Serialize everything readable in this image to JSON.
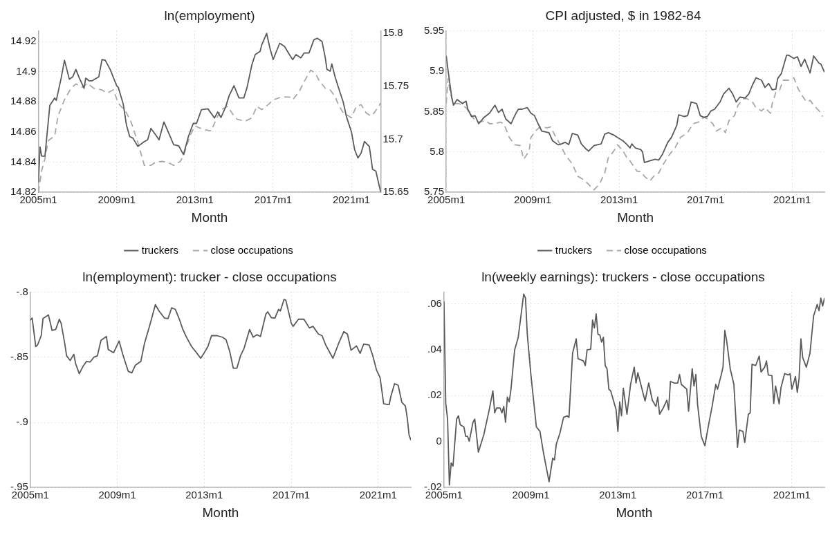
{
  "chart_data": [
    {
      "type": "line",
      "title": "ln(employment)",
      "xlabel": "Month",
      "xlim": [
        "2005-01",
        "2022-07"
      ],
      "xticks": [
        {
          "value": "2005-01",
          "label": "2005m1"
        },
        {
          "value": "2009-01",
          "label": "2009m1"
        },
        {
          "value": "2013-01",
          "label": "2013m1"
        },
        {
          "value": "2017-01",
          "label": "2017m1"
        },
        {
          "value": "2021-01",
          "label": "2021m1"
        }
      ],
      "ylim": [
        14.82,
        14.927
      ],
      "yticks": [
        14.82,
        14.84,
        14.86,
        14.88,
        14.9,
        14.92
      ],
      "y2lim": [
        15.65,
        15.802
      ],
      "y2ticks": [
        15.65,
        15.7,
        15.75,
        15.8
      ],
      "grid": true,
      "legend": "bottom",
      "series": [
        {
          "name": "truckers",
          "color": "#5a5a5a",
          "line_style": "solid",
          "x": [
            "2005-01",
            "2005-02",
            "2005-03",
            "2005-05",
            "2005-08",
            "2005-11",
            "2005-12",
            "2006-03",
            "2006-05",
            "2006-08",
            "2006-10",
            "2006-12",
            "2007-02",
            "2007-05",
            "2007-06",
            "2007-08",
            "2007-10",
            "2008-02",
            "2008-04",
            "2008-06",
            "2008-09",
            "2009-01",
            "2009-02",
            "2009-05",
            "2009-07",
            "2009-09",
            "2009-11",
            "2010-02",
            "2010-06",
            "2010-08",
            "2010-10",
            "2011-01",
            "2011-03",
            "2011-06",
            "2011-09",
            "2011-12",
            "2012-03",
            "2012-06",
            "2012-09",
            "2012-12",
            "2013-02",
            "2013-05",
            "2013-09",
            "2014-01",
            "2014-03",
            "2014-05",
            "2014-08",
            "2014-10",
            "2015-01",
            "2015-04",
            "2015-07",
            "2015-09",
            "2015-12",
            "2016-02",
            "2016-05",
            "2016-06",
            "2016-09",
            "2016-11",
            "2017-01",
            "2017-05",
            "2017-08",
            "2017-11",
            "2018-01",
            "2018-03",
            "2018-06",
            "2018-08",
            "2018-11",
            "2019-02",
            "2019-04",
            "2019-07",
            "2019-09",
            "2019-10",
            "2019-12",
            "2020-01",
            "2020-03",
            "2020-06",
            "2020-08",
            "2020-10",
            "2021-01",
            "2021-03",
            "2021-05",
            "2021-07",
            "2021-09",
            "2021-12",
            "2022-02",
            "2022-04",
            "2022-07"
          ],
          "values": [
            14.8265,
            14.85,
            14.844,
            14.844,
            14.8776,
            14.8826,
            14.881,
            14.896,
            14.9076,
            14.895,
            14.8965,
            14.9015,
            14.896,
            14.889,
            14.8957,
            14.894,
            14.894,
            14.8965,
            14.908,
            14.9076,
            14.9015,
            14.8907,
            14.8896,
            14.8787,
            14.8646,
            14.857,
            14.8559,
            14.8504,
            14.8537,
            14.8548,
            14.8624,
            14.858,
            14.8548,
            14.8667,
            14.8591,
            14.8515,
            14.8509,
            14.845,
            14.857,
            14.8657,
            14.8657,
            14.8748,
            14.8754,
            14.8693,
            14.8733,
            14.8696,
            14.877,
            14.8841,
            14.8907,
            14.8826,
            14.8826,
            14.8896,
            14.9048,
            14.9113,
            14.9135,
            14.9178,
            14.9254,
            14.9157,
            14.908,
            14.9189,
            14.9167,
            14.9113,
            14.908,
            14.9113,
            14.9091,
            14.9124,
            14.9124,
            14.9211,
            14.9222,
            14.92,
            14.9091,
            14.9015,
            14.9004,
            14.9052,
            14.8965,
            14.8863,
            14.8798,
            14.87,
            14.8602,
            14.8483,
            14.8428,
            14.8461,
            14.8537,
            14.8504,
            14.8352,
            14.8341,
            14.82
          ]
        },
        {
          "name": "close occupations",
          "color": "#a8a8a8",
          "line_style": "dashed",
          "axis": "y2",
          "x": [
            "2005-01",
            "2005-03",
            "2005-05",
            "2005-07",
            "2005-11",
            "2006-01",
            "2006-05",
            "2006-09",
            "2006-12",
            "2007-04",
            "2007-07",
            "2007-11",
            "2008-04",
            "2008-07",
            "2008-11",
            "2009-02",
            "2009-07",
            "2009-10",
            "2010-02",
            "2010-06",
            "2010-10",
            "2011-01",
            "2011-05",
            "2011-08",
            "2011-12",
            "2012-04",
            "2012-06",
            "2012-10",
            "2013-01",
            "2013-06",
            "2013-11",
            "2014-02",
            "2014-05",
            "2014-09",
            "2015-01",
            "2015-03",
            "2015-08",
            "2015-12",
            "2016-03",
            "2016-06",
            "2016-10",
            "2017-01",
            "2017-06",
            "2017-11",
            "2018-01",
            "2018-05",
            "2018-08",
            "2018-12",
            "2019-03",
            "2019-05",
            "2019-09",
            "2019-12",
            "2020-03",
            "2020-05",
            "2020-08",
            "2020-10",
            "2021-01",
            "2021-04",
            "2021-07",
            "2021-10",
            "2022-01",
            "2022-03",
            "2022-07"
          ],
          "values": [
            15.65,
            15.6707,
            15.6816,
            15.6986,
            15.7032,
            15.7218,
            15.7372,
            15.748,
            15.7521,
            15.749,
            15.7527,
            15.748,
            15.7465,
            15.7434,
            15.7465,
            15.7341,
            15.7249,
            15.7156,
            15.697,
            15.6754,
            15.6754,
            15.6785,
            15.6791,
            15.6785,
            15.6754,
            15.6791,
            15.6846,
            15.7032,
            15.7125,
            15.7094,
            15.7078,
            15.7187,
            15.7279,
            15.731,
            15.7218,
            15.7187,
            15.7171,
            15.7202,
            15.731,
            15.7279,
            15.7326,
            15.7372,
            15.7397,
            15.7397,
            15.7372,
            15.745,
            15.7542,
            15.7651,
            15.762,
            15.7558,
            15.748,
            15.7465,
            15.7403,
            15.7326,
            15.7249,
            15.7233,
            15.7202,
            15.731,
            15.7326,
            15.7249,
            15.7218,
            15.7249,
            15.7341
          ]
        }
      ]
    },
    {
      "type": "line",
      "title": "CPI adjusted, $ in 1982-84",
      "xlabel": "Month",
      "xlim": [
        "2005-01",
        "2022-07"
      ],
      "xticks": [
        {
          "value": "2005-01",
          "label": "2005m1"
        },
        {
          "value": "2009-01",
          "label": "2009m1"
        },
        {
          "value": "2013-01",
          "label": "2013m1"
        },
        {
          "value": "2017-01",
          "label": "2017m1"
        },
        {
          "value": "2021-01",
          "label": "2021m1"
        }
      ],
      "ylim": [
        5.75,
        5.95
      ],
      "yticks": [
        5.75,
        5.8,
        5.85,
        5.9,
        5.95
      ],
      "grid": true,
      "legend": "bottom",
      "series": [
        {
          "name": "truckers",
          "color": "#5a5a5a",
          "line_style": "solid",
          "x": [
            "2005-01",
            "2005-02",
            "2005-04",
            "2005-05",
            "2005-07",
            "2005-10",
            "2005-12",
            "2006-01",
            "2006-03",
            "2006-05",
            "2006-07",
            "2006-10",
            "2007-01",
            "2007-04",
            "2007-06",
            "2007-08",
            "2007-10",
            "2008-01",
            "2008-03",
            "2008-05",
            "2008-07",
            "2008-10",
            "2008-12",
            "2009-02",
            "2009-04",
            "2009-06",
            "2009-10",
            "2009-12",
            "2010-03",
            "2010-05",
            "2010-07",
            "2010-09",
            "2010-11",
            "2011-02",
            "2011-04",
            "2011-06",
            "2011-08",
            "2011-11",
            "2012-01",
            "2012-03",
            "2012-05",
            "2012-07",
            "2012-10",
            "2012-12",
            "2013-03",
            "2013-05",
            "2013-07",
            "2013-08",
            "2013-10",
            "2014-01",
            "2014-02",
            "2014-03",
            "2014-06",
            "2014-09",
            "2014-11",
            "2015-01",
            "2015-04",
            "2015-06",
            "2015-09",
            "2015-10",
            "2016-01",
            "2016-03",
            "2016-05",
            "2016-08",
            "2016-10",
            "2016-12",
            "2017-02",
            "2017-04",
            "2017-06",
            "2017-09",
            "2017-11",
            "2018-02",
            "2018-04",
            "2018-06",
            "2018-08",
            "2018-11",
            "2019-01",
            "2019-03",
            "2019-05",
            "2019-08",
            "2019-10",
            "2019-12",
            "2020-02",
            "2020-04",
            "2020-05",
            "2020-07",
            "2020-10",
            "2020-11",
            "2021-02",
            "2021-04",
            "2021-06",
            "2021-08",
            "2021-11",
            "2022-01",
            "2022-04",
            "2022-05",
            "2022-07"
          ],
          "values": [
            5.919,
            5.901,
            5.868,
            5.858,
            5.865,
            5.86,
            5.863,
            5.853,
            5.844,
            5.845,
            5.835,
            5.843,
            5.848,
            5.858,
            5.849,
            5.853,
            5.841,
            5.835,
            5.845,
            5.853,
            5.853,
            5.855,
            5.848,
            5.845,
            5.835,
            5.826,
            5.824,
            5.814,
            5.809,
            5.81,
            5.812,
            5.809,
            5.823,
            5.821,
            5.81,
            5.805,
            5.801,
            5.808,
            5.809,
            5.81,
            5.822,
            5.824,
            5.821,
            5.818,
            5.814,
            5.81,
            5.805,
            5.81,
            5.805,
            5.803,
            5.8,
            5.787,
            5.789,
            5.791,
            5.79,
            5.797,
            5.812,
            5.818,
            5.833,
            5.846,
            5.844,
            5.845,
            5.862,
            5.86,
            5.845,
            5.843,
            5.844,
            5.851,
            5.853,
            5.862,
            5.872,
            5.879,
            5.872,
            5.862,
            5.868,
            5.867,
            5.872,
            5.883,
            5.892,
            5.889,
            5.88,
            5.885,
            5.877,
            5.878,
            5.891,
            5.897,
            5.92,
            5.92,
            5.916,
            5.918,
            5.906,
            5.915,
            5.898,
            5.919,
            5.91,
            5.909,
            5.899
          ]
        },
        {
          "name": "close occupations",
          "color": "#a8a8a8",
          "line_style": "dashed",
          "x": [
            "2005-01",
            "2005-02",
            "2005-03",
            "2005-05",
            "2005-08",
            "2005-12",
            "2006-03",
            "2006-05",
            "2006-07",
            "2006-11",
            "2007-01",
            "2007-04",
            "2007-07",
            "2007-09",
            "2007-12",
            "2008-03",
            "2008-06",
            "2008-08",
            "2008-11",
            "2008-12",
            "2009-03",
            "2009-05",
            "2009-09",
            "2009-11",
            "2010-01",
            "2010-04",
            "2010-07",
            "2010-11",
            "2011-02",
            "2011-05",
            "2011-08",
            "2011-11",
            "2012-02",
            "2012-05",
            "2012-07",
            "2012-10",
            "2012-12",
            "2013-03",
            "2013-05",
            "2013-07",
            "2013-11",
            "2014-01",
            "2014-03",
            "2014-06",
            "2014-09",
            "2014-11",
            "2015-01",
            "2015-05",
            "2015-08",
            "2015-11",
            "2016-03",
            "2016-06",
            "2016-09",
            "2016-12",
            "2017-02",
            "2017-05",
            "2017-07",
            "2017-10",
            "2017-12",
            "2018-02",
            "2018-05",
            "2018-07",
            "2018-10",
            "2018-12",
            "2019-03",
            "2019-05",
            "2019-08",
            "2019-10",
            "2020-01",
            "2020-02",
            "2020-04",
            "2020-06",
            "2020-08",
            "2020-11",
            "2021-02",
            "2021-04",
            "2021-06",
            "2021-09",
            "2021-11",
            "2022-01",
            "2022-04",
            "2022-06"
          ],
          "values": [
            5.86,
            5.891,
            5.876,
            5.86,
            5.86,
            5.855,
            5.845,
            5.839,
            5.837,
            5.839,
            5.835,
            5.835,
            5.837,
            5.835,
            5.818,
            5.809,
            5.808,
            5.791,
            5.801,
            5.818,
            5.827,
            5.831,
            5.83,
            5.831,
            5.822,
            5.81,
            5.797,
            5.785,
            5.77,
            5.766,
            5.76,
            5.753,
            5.76,
            5.774,
            5.793,
            5.801,
            5.809,
            5.802,
            5.794,
            5.789,
            5.776,
            5.776,
            5.77,
            5.764,
            5.772,
            5.774,
            5.783,
            5.797,
            5.805,
            5.818,
            5.824,
            5.835,
            5.837,
            5.843,
            5.841,
            5.835,
            5.826,
            5.83,
            5.824,
            5.839,
            5.845,
            5.858,
            5.866,
            5.866,
            5.862,
            5.855,
            5.851,
            5.855,
            5.848,
            5.86,
            5.874,
            5.876,
            5.889,
            5.889,
            5.892,
            5.88,
            5.872,
            5.862,
            5.864,
            5.858,
            5.851,
            5.844
          ]
        }
      ]
    },
    {
      "type": "line",
      "title": "ln(employment): trucker - close occupations",
      "xlabel": "Month",
      "xlim": [
        "2005-01",
        "2022-07"
      ],
      "xticks": [
        {
          "value": "2005-01",
          "label": "2005m1"
        },
        {
          "value": "2009-01",
          "label": "2009m1"
        },
        {
          "value": "2013-01",
          "label": "2013m1"
        },
        {
          "value": "2017-01",
          "label": "2017m1"
        },
        {
          "value": "2021-01",
          "label": "2021m1"
        }
      ],
      "ylim": [
        -0.95,
        -0.8
      ],
      "yticks": [
        {
          "value": -0.95,
          "label": "-.95"
        },
        {
          "value": -0.9,
          "label": "-.9"
        },
        {
          "value": -0.85,
          "label": "-.85"
        },
        {
          "value": -0.8,
          "label": "-.8"
        }
      ],
      "grid": true,
      "series": [
        {
          "color": "#5a5a5a",
          "line_style": "solid",
          "x": [
            "2005-01",
            "2005-02",
            "2005-04",
            "2005-05",
            "2005-07",
            "2005-08",
            "2005-11",
            "2006-01",
            "2006-03",
            "2006-05",
            "2006-06",
            "2006-08",
            "2006-09",
            "2006-11",
            "2007-01",
            "2007-02",
            "2007-04",
            "2007-06",
            "2007-08",
            "2007-10",
            "2007-12",
            "2008-02",
            "2008-04",
            "2008-07",
            "2008-08",
            "2008-11",
            "2009-02",
            "2009-04",
            "2009-07",
            "2009-09",
            "2009-11",
            "2010-02",
            "2010-04",
            "2010-07",
            "2010-10",
            "2010-12",
            "2011-03",
            "2011-05",
            "2011-07",
            "2011-09",
            "2011-11",
            "2012-01",
            "2012-03",
            "2012-06",
            "2012-09",
            "2012-11",
            "2013-01",
            "2013-03",
            "2013-05",
            "2013-08",
            "2013-11",
            "2014-01",
            "2014-03",
            "2014-05",
            "2014-07",
            "2014-09",
            "2014-11",
            "2015-02",
            "2015-04",
            "2015-06",
            "2015-08",
            "2015-11",
            "2015-12",
            "2016-02",
            "2016-04",
            "2016-06",
            "2016-07",
            "2016-09",
            "2016-10",
            "2017-01",
            "2017-02",
            "2017-05",
            "2017-08",
            "2017-11",
            "2018-01",
            "2018-04",
            "2018-06",
            "2018-08",
            "2018-12",
            "2019-03",
            "2019-06",
            "2019-08",
            "2019-10",
            "2020-01",
            "2020-03",
            "2020-05",
            "2020-08",
            "2020-10",
            "2020-12",
            "2021-02",
            "2021-04",
            "2021-07",
            "2021-08",
            "2021-10",
            "2021-12",
            "2022-02",
            "2022-04",
            "2022-05",
            "2022-06",
            "2022-07"
          ],
          "values": [
            -0.8214,
            -0.8198,
            -0.8417,
            -0.8405,
            -0.8333,
            -0.8202,
            -0.8174,
            -0.8293,
            -0.8286,
            -0.8207,
            -0.8238,
            -0.8393,
            -0.8488,
            -0.8524,
            -0.8476,
            -0.8548,
            -0.8626,
            -0.8571,
            -0.8531,
            -0.8536,
            -0.85,
            -0.8488,
            -0.8369,
            -0.834,
            -0.844,
            -0.8464,
            -0.8374,
            -0.8476,
            -0.8607,
            -0.8619,
            -0.856,
            -0.8531,
            -0.8393,
            -0.825,
            -0.8095,
            -0.8143,
            -0.8198,
            -0.8202,
            -0.8119,
            -0.8131,
            -0.8198,
            -0.8279,
            -0.834,
            -0.8417,
            -0.8469,
            -0.8507,
            -0.8464,
            -0.8417,
            -0.8333,
            -0.8333,
            -0.8345,
            -0.8364,
            -0.8452,
            -0.8583,
            -0.8583,
            -0.8488,
            -0.8429,
            -0.8286,
            -0.8345,
            -0.8326,
            -0.834,
            -0.8167,
            -0.815,
            -0.8195,
            -0.8198,
            -0.8131,
            -0.8143,
            -0.8055,
            -0.806,
            -0.8238,
            -0.8262,
            -0.8207,
            -0.8207,
            -0.8274,
            -0.8262,
            -0.8321,
            -0.8333,
            -0.8405,
            -0.8507,
            -0.8398,
            -0.8302,
            -0.8321,
            -0.8445,
            -0.8412,
            -0.8469,
            -0.8398,
            -0.8405,
            -0.8488,
            -0.8595,
            -0.8655,
            -0.8857,
            -0.8864,
            -0.8798,
            -0.8702,
            -0.8714,
            -0.8845,
            -0.8874,
            -0.8964,
            -0.9095,
            -0.9136
          ]
        }
      ]
    },
    {
      "type": "line",
      "title": "ln(weekly earnings): truckers - close occupations",
      "xlabel": "Month",
      "xlim": [
        "2005-01",
        "2022-07"
      ],
      "xticks": [
        {
          "value": "2005-01",
          "label": "2005m1"
        },
        {
          "value": "2009-01",
          "label": "2009m1"
        },
        {
          "value": "2013-01",
          "label": "2013m1"
        },
        {
          "value": "2017-01",
          "label": "2017m1"
        },
        {
          "value": "2021-01",
          "label": "2021m1"
        }
      ],
      "ylim": [
        -0.02,
        0.065
      ],
      "yticks": [
        {
          "value": -0.02,
          "label": "-.02"
        },
        0,
        {
          "value": 0.02,
          "label": ".02"
        },
        {
          "value": 0.04,
          "label": ".04"
        },
        {
          "value": 0.06,
          "label": ".06"
        }
      ],
      "grid": true,
      "series": [
        {
          "color": "#5a5a5a",
          "line_style": "solid",
          "x": [
            "2005-01",
            "2005-02",
            "2005-03",
            "2005-04",
            "2005-05",
            "2005-06",
            "2005-08",
            "2005-09",
            "2005-10",
            "2005-12",
            "2006-01",
            "2006-02",
            "2006-03",
            "2006-05",
            "2006-06",
            "2006-08",
            "2006-11",
            "2007-02",
            "2007-04",
            "2007-05",
            "2007-06",
            "2007-08",
            "2007-09",
            "2007-10",
            "2007-11",
            "2007-12",
            "2008-01",
            "2008-02",
            "2008-04",
            "2008-06",
            "2008-09",
            "2008-10",
            "2008-11",
            "2009-01",
            "2009-04",
            "2009-06",
            "2009-08",
            "2009-11",
            "2010-01",
            "2010-02",
            "2010-03",
            "2010-05",
            "2010-07",
            "2010-09",
            "2010-10",
            "2010-12",
            "2011-02",
            "2011-03",
            "2011-06",
            "2011-07",
            "2011-08",
            "2011-10",
            "2011-11",
            "2011-12",
            "2012-01",
            "2012-02",
            "2012-03",
            "2012-04",
            "2012-05",
            "2012-06",
            "2012-07",
            "2012-08",
            "2012-09",
            "2012-12",
            "2013-01",
            "2013-02",
            "2013-03",
            "2013-04",
            "2013-06",
            "2013-08",
            "2013-10",
            "2013-11",
            "2013-12",
            "2014-03",
            "2014-04",
            "2014-06",
            "2014-08",
            "2014-10",
            "2014-11",
            "2014-12",
            "2015-02",
            "2015-04",
            "2015-05",
            "2015-06",
            "2015-08",
            "2015-10",
            "2015-11",
            "2015-12",
            "2016-03",
            "2016-04",
            "2016-06",
            "2016-07",
            "2016-08",
            "2016-09",
            "2016-11",
            "2017-01",
            "2017-03",
            "2017-05",
            "2017-07",
            "2017-08",
            "2017-10",
            "2017-11",
            "2017-12",
            "2018-01",
            "2018-03",
            "2018-05",
            "2018-07",
            "2018-08",
            "2018-10",
            "2018-11",
            "2019-01",
            "2019-02",
            "2019-03",
            "2019-05",
            "2019-07",
            "2019-08",
            "2019-10",
            "2019-11",
            "2019-12",
            "2020-02",
            "2020-03",
            "2020-04",
            "2020-06",
            "2020-07",
            "2020-09",
            "2020-11",
            "2020-12",
            "2021-01",
            "2021-03",
            "2021-04",
            "2021-05",
            "2021-06",
            "2021-07",
            "2021-09",
            "2021-11",
            "2022-01",
            "2022-03",
            "2022-04",
            "2022-05",
            "2022-06",
            "2022-07"
          ],
          "values": [
            0.0611,
            0.0166,
            0.0098,
            -0.0189,
            -0.0093,
            -0.0107,
            0.0098,
            0.0112,
            0.0073,
            0.0064,
            0.0023,
            0.0023,
            0.0002,
            0.0084,
            0.0098,
            -0.0046,
            0.003,
            0.0139,
            0.0221,
            0.0125,
            0.0146,
            0.0146,
            0.0125,
            0.0153,
            0.0084,
            0.0194,
            0.0173,
            0.0228,
            0.0399,
            0.0454,
            0.0642,
            0.0625,
            0.0467,
            0.029,
            0.0064,
            0.0044,
            -0.0052,
            -0.0175,
            -0.0073,
            -0.008,
            -0.0011,
            0.0037,
            0.0105,
            0.0112,
            0.0105,
            0.0385,
            0.0447,
            0.0361,
            0.0351,
            0.0331,
            0.0399,
            0.0402,
            0.0529,
            0.0495,
            0.0556,
            0.0467,
            0.0465,
            0.0433,
            0.0454,
            0.0331,
            0.0317,
            0.0228,
            0.0221,
            0.0139,
            0.0044,
            0.0173,
            0.0112,
            0.0232,
            0.0119,
            0.0249,
            0.0324,
            0.0255,
            0.03,
            0.0207,
            0.0177,
            0.0255,
            0.018,
            0.0153,
            0.0194,
            0.0119,
            0.0146,
            0.018,
            0.0139,
            0.0262,
            0.0255,
            0.0255,
            0.0292,
            0.0249,
            0.0228,
            0.0132,
            0.0317,
            0.0242,
            0.0292,
            0.016,
            0.0023,
            -0.0018,
            0.0071,
            0.0153,
            0.0249,
            0.0228,
            0.029,
            0.0324,
            0.0484,
            0.044,
            0.0317,
            0.0249,
            -0.0025,
            0.005,
            0.0044,
            -0.0004,
            0.0119,
            0.0125,
            0.0337,
            0.0331,
            0.0372,
            0.0303,
            0.0324,
            0.0351,
            0.029,
            0.0287,
            0.0166,
            0.0242,
            0.0164,
            0.0235,
            0.0296,
            0.029,
            0.0296,
            0.0228,
            0.0283,
            0.0214,
            0.0276,
            0.0447,
            0.0365,
            0.0324,
            0.0385,
            0.0547,
            0.0597,
            0.057,
            0.0625,
            0.059,
            0.0625
          ]
        }
      ]
    }
  ]
}
